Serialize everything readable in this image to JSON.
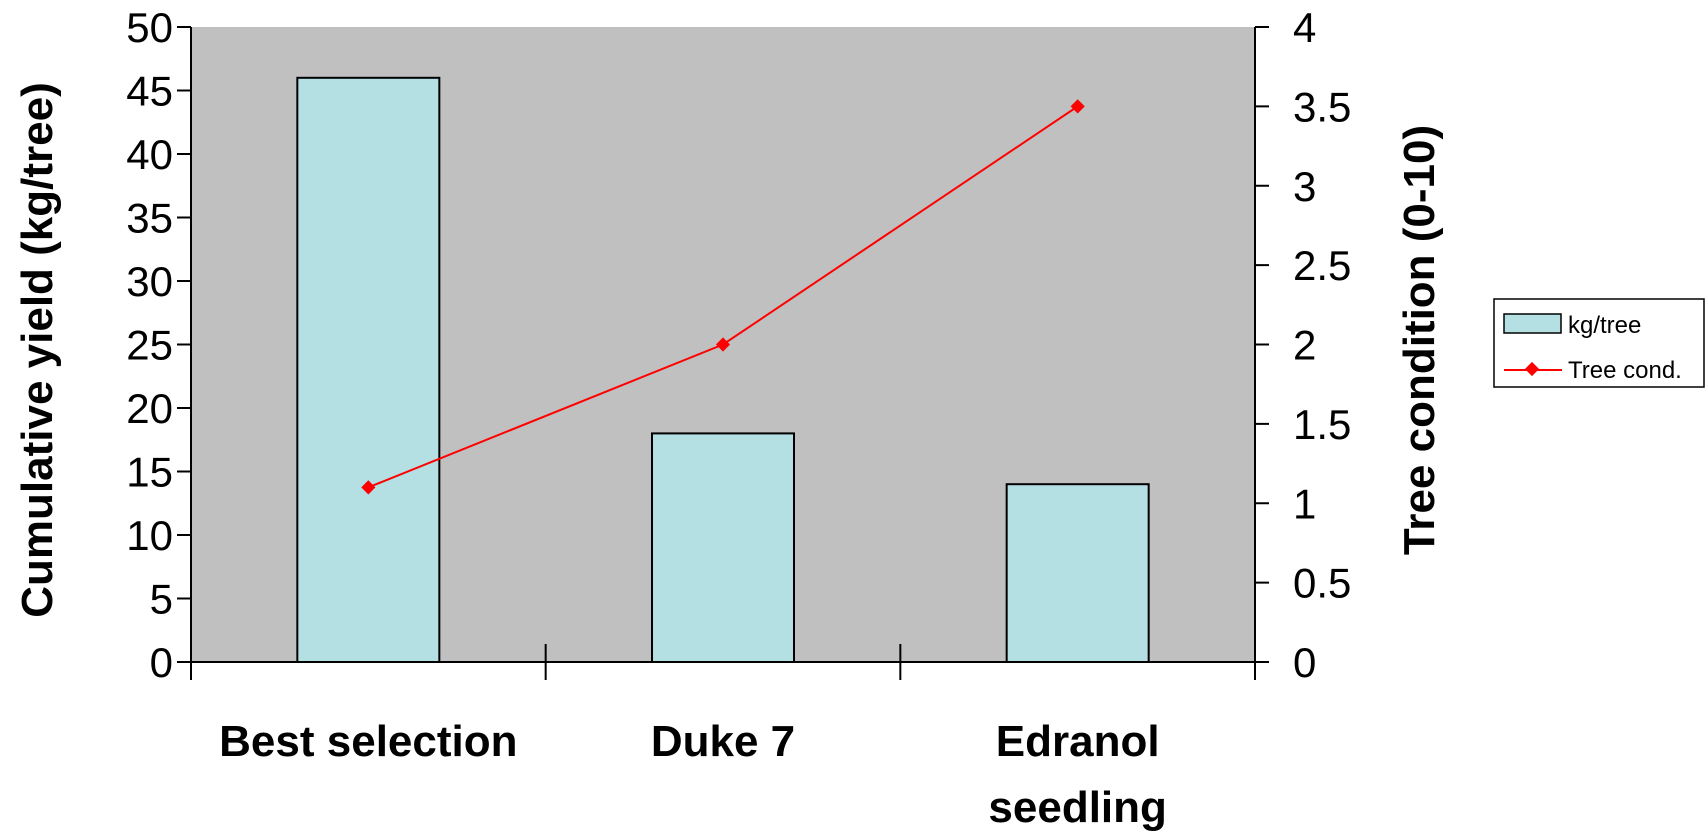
{
  "chart_data": {
    "type": "bar",
    "categories": [
      "Best selection",
      "Duke 7",
      "Edranol seedling"
    ],
    "series": [
      {
        "name": "kg/tree",
        "type": "bar",
        "axis": "left",
        "values": [
          46,
          18,
          14
        ]
      },
      {
        "name": "Tree cond.",
        "type": "line",
        "axis": "right",
        "values": [
          1.1,
          2.0,
          3.5
        ]
      }
    ],
    "ylabel": "Cumulative yield (kg/tree)",
    "y2label": "Tree condition (0-10)",
    "ylim": [
      0,
      50
    ],
    "y2lim": [
      0,
      4
    ],
    "yticks": [
      "0",
      "5",
      "10",
      "15",
      "20",
      "25",
      "30",
      "35",
      "40",
      "45",
      "50"
    ],
    "y2ticks": [
      "0",
      "0.5",
      "1",
      "1.5",
      "2",
      "2.5",
      "3",
      "3.5",
      "4"
    ],
    "legend": "right",
    "grid": false,
    "colors": {
      "plot_bg": "#c0c0c0",
      "bar_fill": "#b4e0e4",
      "line": "#ff0000"
    }
  }
}
